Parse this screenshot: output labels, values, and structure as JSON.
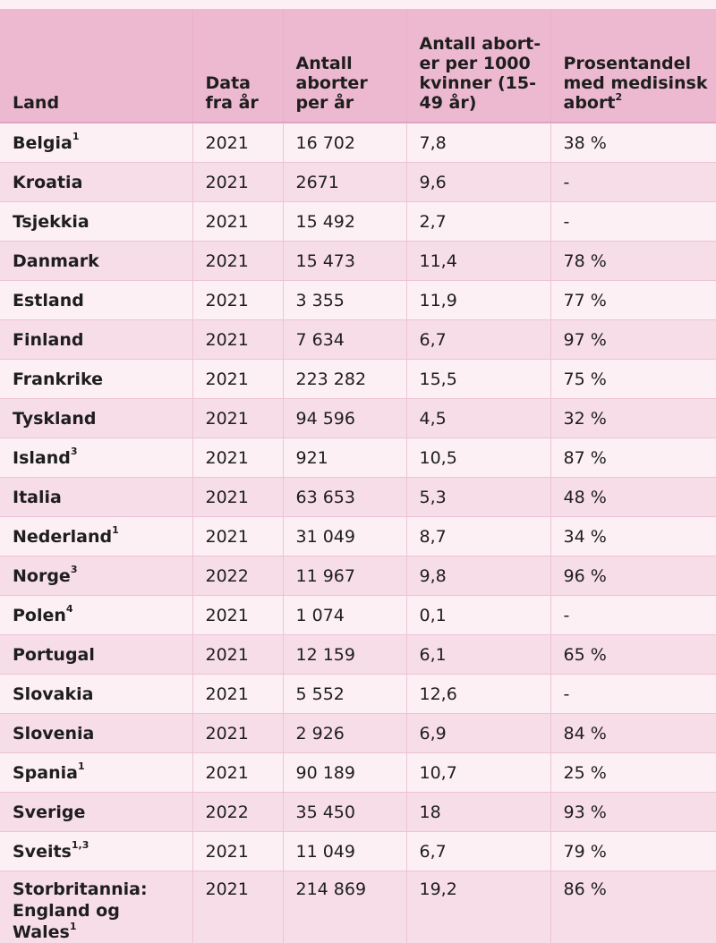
{
  "headers": {
    "land": "Land",
    "year": "Data fra år",
    "count": "Antall aborter per år",
    "rate": "Antall abort-er per 1000 kvinner (15-49 år)",
    "medical_pre": "Prosentandel med medisinsk abort",
    "medical_sup": "2"
  },
  "rows": [
    {
      "land": "Belgia",
      "sup": "1",
      "year": "2021",
      "count": "16 702",
      "rate": "7,8",
      "medical": "38 %"
    },
    {
      "land": "Kroatia",
      "sup": "",
      "year": "2021",
      "count": "2671",
      "rate": "9,6",
      "medical": "-"
    },
    {
      "land": "Tsjekkia",
      "sup": "",
      "year": "2021",
      "count": "15 492",
      "rate": "2,7",
      "medical": "-"
    },
    {
      "land": "Danmark",
      "sup": "",
      "year": "2021",
      "count": "15 473",
      "rate": "11,4",
      "medical": "78 %"
    },
    {
      "land": "Estland",
      "sup": "",
      "year": "2021",
      "count": "3 355",
      "rate": "11,9",
      "medical": "77 %"
    },
    {
      "land": "Finland",
      "sup": "",
      "year": "2021",
      "count": "7 634",
      "rate": "6,7",
      "medical": "97 %"
    },
    {
      "land": "Frankrike",
      "sup": "",
      "year": "2021",
      "count": "223 282",
      "rate": "15,5",
      "medical": "75 %"
    },
    {
      "land": "Tyskland",
      "sup": "",
      "year": "2021",
      "count": "94 596",
      "rate": "4,5",
      "medical": "32 %"
    },
    {
      "land": "Island",
      "sup": "3",
      "year": "2021",
      "count": "921",
      "rate": "10,5",
      "medical": "87 %"
    },
    {
      "land": "Italia",
      "sup": "",
      "year": "2021",
      "count": "63 653",
      "rate": "5,3",
      "medical": "48 %"
    },
    {
      "land": "Nederland",
      "sup": "1",
      "year": "2021",
      "count": "31 049",
      "rate": "8,7",
      "medical": "34 %"
    },
    {
      "land": "Norge",
      "sup": "3",
      "year": "2022",
      "count": "11 967",
      "rate": "9,8",
      "medical": "96 %"
    },
    {
      "land": "Polen",
      "sup": "4",
      "year": "2021",
      "count": "1 074",
      "rate": "0,1",
      "medical": "-"
    },
    {
      "land": "Portugal",
      "sup": "",
      "year": "2021",
      "count": "12 159",
      "rate": "6,1",
      "medical": "65 %"
    },
    {
      "land": "Slovakia",
      "sup": "",
      "year": "2021",
      "count": "5 552",
      "rate": "12,6",
      "medical": "-"
    },
    {
      "land": "Slovenia",
      "sup": "",
      "year": "2021",
      "count": "2 926",
      "rate": "6,9",
      "medical": "84 %"
    },
    {
      "land": "Spania",
      "sup": "1",
      "year": "2021",
      "count": "90 189",
      "rate": "10,7",
      "medical": "25 %"
    },
    {
      "land": "Sverige",
      "sup": "",
      "year": "2022",
      "count": "35 450",
      "rate": "18",
      "medical": "93 %"
    },
    {
      "land": "Sveits",
      "sup": "1,3",
      "year": "2021",
      "count": "11 049",
      "rate": "6,7",
      "medical": "79 %"
    },
    {
      "land": "Storbritannia: England og Wales",
      "sup": "1",
      "year": "2021",
      "count": "214 869",
      "rate": "19,2",
      "medical": "86 %"
    }
  ]
}
